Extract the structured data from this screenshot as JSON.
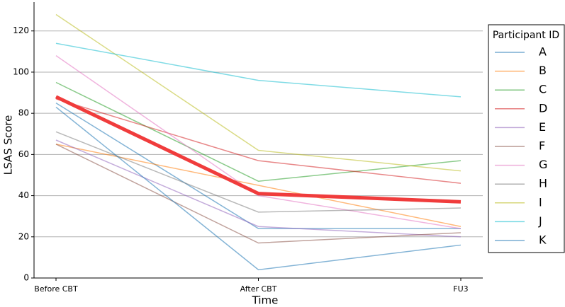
{
  "chart_data": {
    "type": "line",
    "x_label": "Time",
    "y_label": "LSAS Score",
    "categories": [
      "Before CBT",
      "After CBT",
      "FU3"
    ],
    "ylim": [
      0,
      134
    ],
    "yticks": [
      0,
      20,
      40,
      60,
      80,
      100,
      120
    ],
    "grid": true,
    "legend_title": "Participant ID",
    "legend_position": "right",
    "series": [
      {
        "name": "A",
        "color": "#1f77b4",
        "values": [
          85,
          24,
          24
        ]
      },
      {
        "name": "B",
        "color": "#ff7f0e",
        "values": [
          65,
          45,
          25
        ]
      },
      {
        "name": "C",
        "color": "#2ca02c",
        "values": [
          95,
          47,
          57
        ]
      },
      {
        "name": "D",
        "color": "#d62728",
        "values": [
          87,
          57,
          46
        ]
      },
      {
        "name": "E",
        "color": "#9467bd",
        "values": [
          67,
          25,
          20
        ]
      },
      {
        "name": "F",
        "color": "#8c564b",
        "values": [
          65,
          17,
          22
        ]
      },
      {
        "name": "G",
        "color": "#e377c2",
        "values": [
          108,
          40,
          24
        ]
      },
      {
        "name": "H",
        "color": "#7f7f7f",
        "values": [
          71,
          32,
          34
        ]
      },
      {
        "name": "I",
        "color": "#bcbd22",
        "values": [
          128,
          62,
          52
        ]
      },
      {
        "name": "J",
        "color": "#17becf",
        "values": [
          114,
          96,
          88
        ]
      },
      {
        "name": "K",
        "color": "#1f77b4",
        "values": [
          83,
          4,
          16
        ]
      }
    ],
    "highlight": {
      "color": "#f03c3c",
      "values": [
        88,
        41,
        37
      ]
    }
  }
}
